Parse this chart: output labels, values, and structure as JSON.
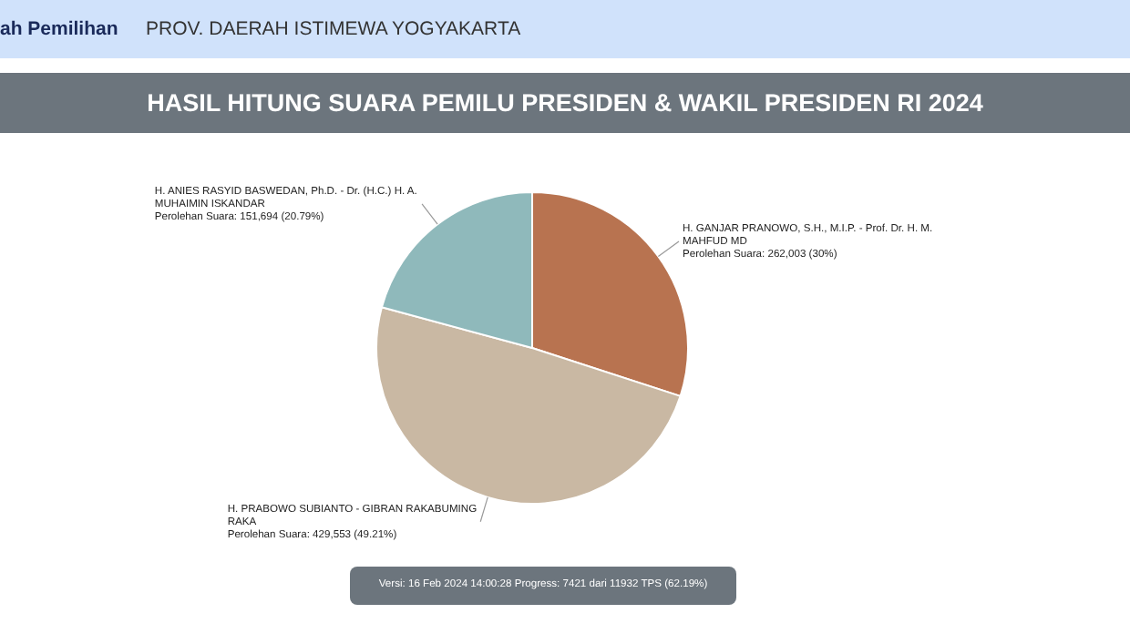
{
  "chart_data": {
    "type": "pie",
    "title": "HASIL HITUNG SUARA PEMILU PRESIDEN & WAKIL PRESIDEN RI 2024",
    "categories": [
      "H. GANJAR PRANOWO, S.H., M.I.P. - Prof. Dr. H. M. MAHFUD MD",
      "H. PRABOWO SUBIANTO - GIBRAN RAKABUMING RAKA",
      "H. ANIES RASYID BASWEDAN, Ph.D. - Dr. (H.C.) H. A. MUHAIMIN ISKANDAR"
    ],
    "values": [
      30,
      49.21,
      20.79
    ],
    "colors": [
      "#b87350",
      "#c9b8a3",
      "#8fb9bb"
    ],
    "value_labels": [
      "Perolehan Suara: 262,003 (30%)",
      "Perolehan Suara: 429,553 (49.21%)",
      "Perolehan Suara: 151,694 (20.79%)"
    ],
    "legend": false,
    "annotations": [
      "ah Pemilihan",
      "PROV. DAERAH ISTIMEWA YOGYAKARTA",
      "Versi: 16 Feb 2024 14:00:28 Progress: 7421 dari 11932 TPS (62.19%)"
    ]
  }
}
